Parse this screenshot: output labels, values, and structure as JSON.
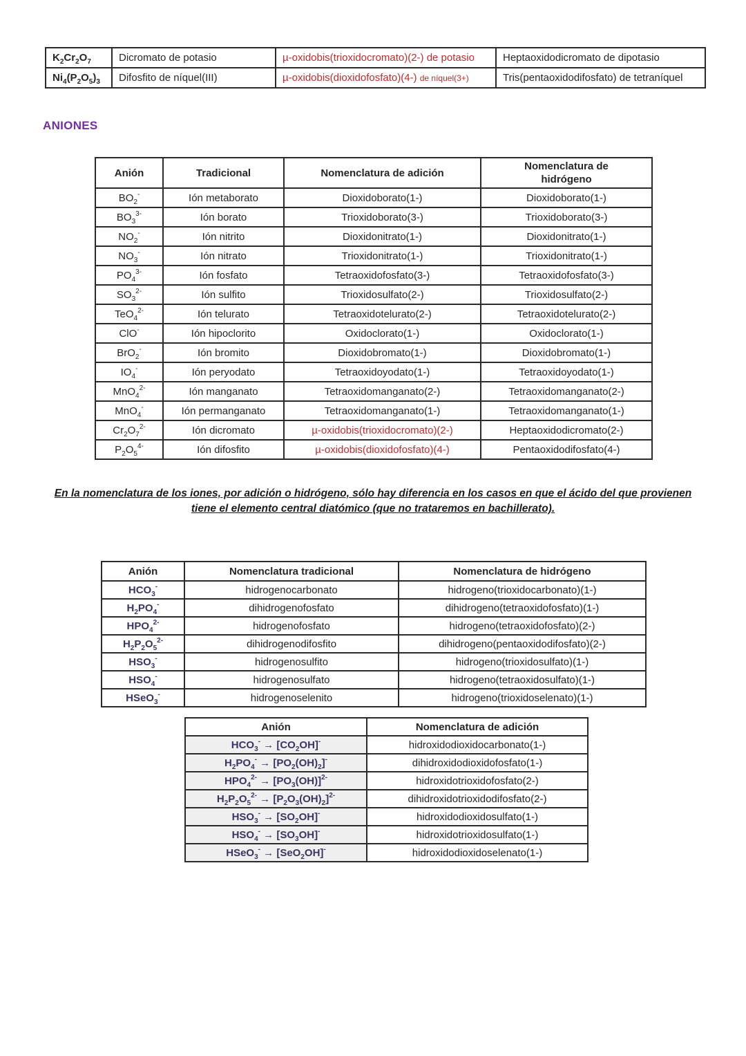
{
  "colors": {
    "accent_purple": "#7030A0",
    "accent_red": "#C02B2B",
    "formula_navy": "#3B3361"
  },
  "section_title": "ANIONES",
  "top_table": {
    "cell_types": [
      "formula",
      "text",
      "formula",
      "text"
    ],
    "col_classes": [
      "bold-col",
      "",
      "",
      ""
    ],
    "col_names": [
      "compound-formula",
      "traditional-name",
      "addition-name",
      "composition-name"
    ],
    "cell_styles": {
      "0.2": "red",
      "1.2": "red"
    },
    "rows": [
      [
        "K~2~Cr~2~O~7~",
        "Dicromato de potasio",
        "µ-oxidobis(trioxidocromato)(2-) de potasio",
        "Heptaoxidodicromato de dipotasio"
      ],
      [
        "Ni~4~(P~2~O~5~)~3~",
        "Difosfito de níquel(III)",
        "µ-oxidobis(dioxidofosfato)(4-) %de níquel(3+)%",
        "Tris(pentaoxidodifosfato) de tetraníquel"
      ]
    ]
  },
  "main_table": {
    "headers": [
      "Anión",
      "Tradicional",
      "Nomenclatura de adición",
      "Nomenclatura de hidrógeno"
    ],
    "cell_types": [
      "formula",
      "text",
      "text",
      "text"
    ],
    "col_classes": [
      "",
      "",
      "",
      ""
    ],
    "col_names": [
      "anion-formula",
      "traditional-name",
      "addition-name",
      "hydrogen-name"
    ],
    "cell_styles": {
      "12.2": "red",
      "13.2": "red"
    },
    "rows": [
      [
        "BO~2~^-^",
        "Ión metaborato",
        "Dioxidoborato(1-)",
        "Dioxidoborato(1-)"
      ],
      [
        "BO~3~^3-^",
        "Ión borato",
        "Trioxidoborato(3-)",
        "Trioxidoborato(3-)"
      ],
      [
        "NO~2~^-^",
        "Ión nitrito",
        "Dioxidonitrato(1-)",
        "Dioxidonitrato(1-)"
      ],
      [
        "NO~3~^-^",
        "Ión nitrato",
        "Trioxidonitrato(1-)",
        "Trioxidonitrato(1-)"
      ],
      [
        "PO~4~^3-^",
        "Ión fosfato",
        "Tetraoxidofosfato(3-)",
        "Tetraoxidofosfato(3-)"
      ],
      [
        "SO~3~^2-^",
        "Ión sulfito",
        "Trioxidosulfato(2-)",
        "Trioxidosulfato(2-)"
      ],
      [
        "TeO~4~^2-^",
        "Ión telurato",
        "Tetraoxidotelurato(2-)",
        "Tetraoxidotelurato(2-)"
      ],
      [
        "ClO^-^",
        "Ión hipoclorito",
        "Oxidoclorato(1-)",
        "Oxidoclorato(1-)"
      ],
      [
        "BrO~2~^-^",
        "Ión bromito",
        "Dioxidobromato(1-)",
        "Dioxidobromato(1-)"
      ],
      [
        "IO~4~^-^",
        "Ión peryodato",
        "Tetraoxidoyodato(1-)",
        "Tetraoxidoyodato(1-)"
      ],
      [
        "MnO~4~^2-^",
        "Ión manganato",
        "Tetraoxidomanganato(2-)",
        "Tetraoxidomanganato(2-)"
      ],
      [
        "MnO~4~^-^",
        "Ión permanganato",
        "Tetraoxidomanganato(1-)",
        "Tetraoxidomanganato(1-)"
      ],
      [
        "Cr~2~O~7~^2-^",
        "Ión dicromato",
        "µ-oxidobis(trioxidocromato)(2-)",
        "Heptaoxidodicromato(2-)"
      ],
      [
        "P~2~O~5~^4-^",
        "Ión difosfito",
        "µ-oxidobis(dioxidofosfato)(4-)",
        "Pentaoxidodifosfato(4-)"
      ]
    ]
  },
  "note": {
    "line1": "En la nomenclatura de los iones, por adición o hidrógeno, sólo hay diferencia en los casos en que el ácido del que provienen",
    "line2": "tiene el elemento central diatómico (que no trataremos en bachillerato)."
  },
  "hydrogen_table": {
    "headers": [
      "Anión",
      "Nomenclatura tradicional",
      "Nomenclatura de hidrógeno"
    ],
    "cell_types": [
      "formula",
      "text",
      "text"
    ],
    "col_classes": [
      "navy",
      "",
      ""
    ],
    "col_names": [
      "anion-formula",
      "traditional-name",
      "hydrogen-name"
    ],
    "cell_styles": {},
    "rows": [
      [
        "HCO~3~^-^",
        "hidrogenocarbonato",
        "hidrogeno(trioxidocarbonato)(1-)"
      ],
      [
        "H~2~PO~4~^-^",
        "dihidrogenofosfato",
        "dihidrogeno(tetraoxidofosfato)(1-)"
      ],
      [
        "HPO~4~^2-^",
        "hidrogenofosfato",
        "hidrogeno(tetraoxidofosfato)(2-)"
      ],
      [
        "H~2~P~2~O~5~^2-^",
        "dihidrogenodifosfito",
        "dihidrogeno(pentaoxidodifosfato)(2-)"
      ],
      [
        "HSO~3~^-^",
        "hidrogenosulfito",
        "hidrogeno(trioxidosulfato)(1-)"
      ],
      [
        "HSO~4~^-^",
        "hidrogenosulfato",
        "hidrogeno(tetraoxidosulfato)(1-)"
      ],
      [
        "HSeO~3~^-^",
        "hidrogenoselenito",
        "hidrogeno(trioxidoselenato)(1-)"
      ]
    ]
  },
  "addition_table": {
    "headers": [
      "Anión",
      "Nomenclatura de adición"
    ],
    "cell_types": [
      "formula",
      "text"
    ],
    "col_classes": [
      "navy graybg",
      ""
    ],
    "col_names": [
      "anion-conversion",
      "addition-name"
    ],
    "cell_styles": {},
    "rows": [
      [
        "HCO~3~^-^ → [CO~2~OH]^-^",
        "hidroxidodioxidocarbonato(1-)"
      ],
      [
        "H~2~PO~4~^-^ → [PO~2~(OH)~2~]^-^",
        "dihidroxidodioxidofosfato(1-)"
      ],
      [
        "HPO~4~^2-^ → [PO~3~(OH)]^2-^",
        "hidroxidotrioxidofosfato(2-)"
      ],
      [
        "H~2~P~2~O~5~^2-^ → [P~2~O~3~(OH)~2~]^2-^",
        "dihidroxidotrioxidodifosfato(2-)"
      ],
      [
        "HSO~3~^-^ → [SO~2~OH]^-^",
        "hidroxidodioxidosulfato(1-)"
      ],
      [
        "HSO~4~^-^ → [SO~3~OH]^-^",
        "hidroxidotrioxidosulfato(1-)"
      ],
      [
        "HSeO~3~^-^ → [SeO~2~OH]^-^",
        "hidroxidodioxidoselenato(1-)"
      ]
    ]
  }
}
